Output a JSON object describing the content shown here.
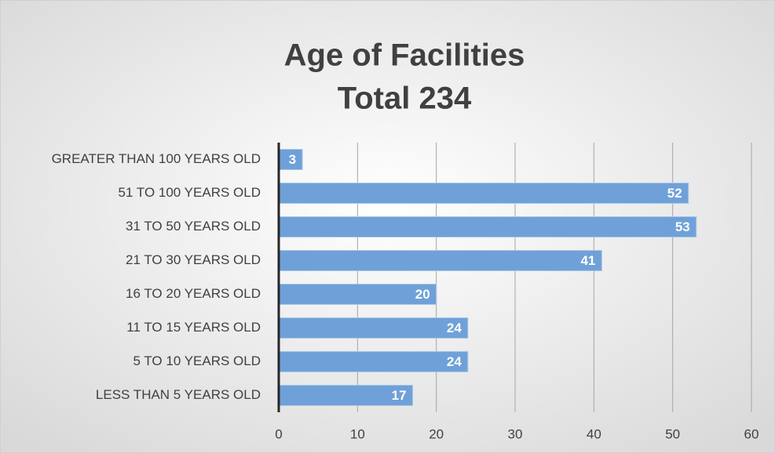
{
  "chart_data": {
    "type": "bar",
    "horizontal": true,
    "title": "Age of Facilities",
    "subtitle": "Total 234",
    "categories": [
      "GREATER THAN 100 YEARS OLD",
      "51 TO 100 YEARS OLD",
      "31 TO 50 YEARS OLD",
      "21 TO 30 YEARS OLD",
      "16 TO 20 YEARS OLD",
      "11 TO 15 YEARS OLD",
      "5 TO 10 YEARS OLD",
      "LESS THAN 5 YEARS OLD"
    ],
    "values": [
      3,
      52,
      53,
      41,
      20,
      24,
      24,
      17
    ],
    "color": "#6fa1d8",
    "xlim": [
      0,
      60
    ],
    "xticks": [
      0,
      10,
      20,
      30,
      40,
      50,
      60
    ],
    "grid": true
  }
}
